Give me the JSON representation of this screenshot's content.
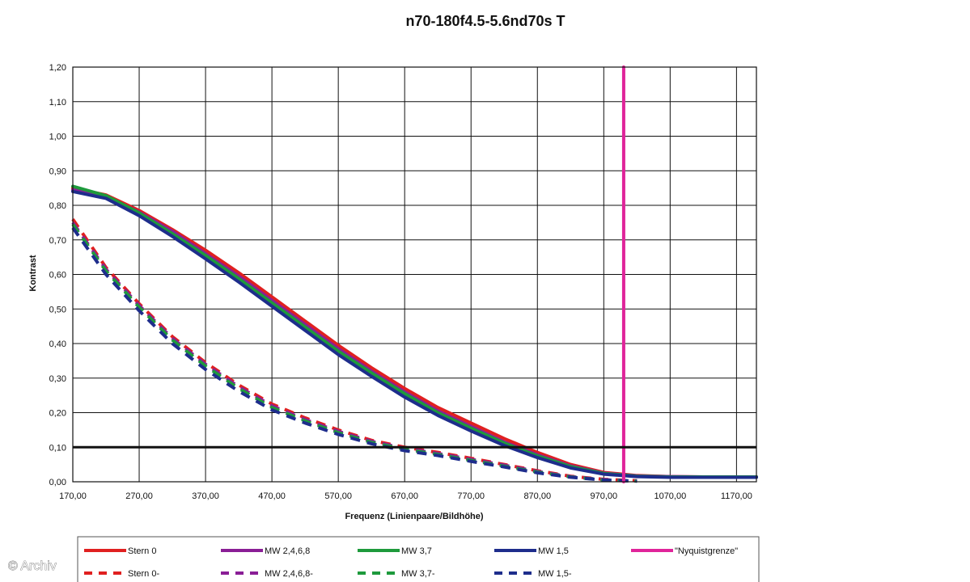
{
  "chart_data": {
    "type": "line",
    "title": "n70-180f4.5-5.6nd70s T",
    "xlabel": "Frequenz (Linienpaare/Bildhöhe)",
    "ylabel": "Kontrast",
    "xlim": [
      170,
      1200
    ],
    "ylim": [
      0,
      1.2
    ],
    "x_ticks": [
      "170,00",
      "270,00",
      "370,00",
      "470,00",
      "570,00",
      "670,00",
      "770,00",
      "870,00",
      "970,00",
      "1070,00",
      "1170,00"
    ],
    "y_ticks": [
      "0,00",
      "0,10",
      "0,20",
      "0,30",
      "0,40",
      "0,50",
      "0,60",
      "0,70",
      "0,80",
      "0,90",
      "1,00",
      "1,10",
      "1,20"
    ],
    "grid": true,
    "legend_position": "bottom",
    "series": [
      {
        "name": "Stern 0",
        "color": "#e02020",
        "dash": false,
        "x": [
          170,
          220,
          270,
          320,
          370,
          420,
          470,
          520,
          570,
          620,
          670,
          720,
          770,
          820,
          870,
          920,
          970,
          1020,
          1070,
          1120,
          1170,
          1200
        ],
        "y": [
          0.85,
          0.83,
          0.785,
          0.73,
          0.67,
          0.605,
          0.535,
          0.465,
          0.395,
          0.33,
          0.27,
          0.215,
          0.17,
          0.125,
          0.085,
          0.05,
          0.027,
          0.018,
          0.015,
          0.014,
          0.014,
          0.014
        ]
      },
      {
        "name": "MW 2,4,6,8",
        "color": "#8a1e96",
        "dash": false,
        "x": [
          170,
          220,
          270,
          320,
          370,
          420,
          470,
          520,
          570,
          620,
          670,
          720,
          770,
          820,
          870,
          920,
          970,
          1020,
          1070,
          1120,
          1170,
          1200
        ],
        "y": [
          0.845,
          0.826,
          0.78,
          0.725,
          0.66,
          0.595,
          0.525,
          0.455,
          0.385,
          0.32,
          0.26,
          0.205,
          0.16,
          0.115,
          0.078,
          0.046,
          0.025,
          0.017,
          0.015,
          0.014,
          0.014,
          0.014
        ]
      },
      {
        "name": "MW 3,7",
        "color": "#1e9a3c",
        "dash": false,
        "x": [
          170,
          220,
          270,
          320,
          370,
          420,
          470,
          520,
          570,
          620,
          670,
          720,
          770,
          820,
          870,
          920,
          970,
          1020,
          1070,
          1120,
          1170,
          1200
        ],
        "y": [
          0.855,
          0.828,
          0.778,
          0.718,
          0.655,
          0.588,
          0.518,
          0.448,
          0.378,
          0.315,
          0.255,
          0.2,
          0.155,
          0.112,
          0.075,
          0.044,
          0.024,
          0.016,
          0.014,
          0.014,
          0.014,
          0.014
        ]
      },
      {
        "name": "MW 1,5",
        "color": "#1e2d8c",
        "dash": false,
        "x": [
          170,
          220,
          270,
          320,
          370,
          420,
          470,
          520,
          570,
          620,
          670,
          720,
          770,
          820,
          870,
          920,
          970,
          1020,
          1070,
          1120,
          1170,
          1200
        ],
        "y": [
          0.84,
          0.82,
          0.77,
          0.71,
          0.645,
          0.578,
          0.508,
          0.438,
          0.368,
          0.305,
          0.245,
          0.192,
          0.147,
          0.105,
          0.07,
          0.04,
          0.022,
          0.015,
          0.013,
          0.013,
          0.013,
          0.013
        ]
      },
      {
        "name": "\"Nyquistgrenze\"",
        "color": "#e0249a",
        "dash": false,
        "x": [
          1000,
          1000
        ],
        "y": [
          0,
          1.2
        ]
      },
      {
        "name": "Stern 0-",
        "color": "#e02020",
        "dash": true,
        "x": [
          170,
          220,
          270,
          320,
          370,
          420,
          470,
          520,
          570,
          620,
          670,
          720,
          770,
          820,
          870,
          920,
          970,
          1020
        ],
        "y": [
          0.76,
          0.62,
          0.515,
          0.42,
          0.345,
          0.28,
          0.225,
          0.185,
          0.15,
          0.12,
          0.1,
          0.085,
          0.068,
          0.05,
          0.032,
          0.016,
          0.007,
          0.003
        ]
      },
      {
        "name": "MW 2,4,6,8-",
        "color": "#8a1e96",
        "dash": true,
        "x": [
          170,
          220,
          270,
          320,
          370,
          420,
          470,
          520,
          570,
          620,
          670,
          720,
          770,
          820,
          870,
          920,
          970,
          1020
        ],
        "y": [
          0.75,
          0.615,
          0.51,
          0.415,
          0.34,
          0.275,
          0.22,
          0.18,
          0.146,
          0.117,
          0.097,
          0.082,
          0.065,
          0.048,
          0.03,
          0.015,
          0.006,
          0.002
        ]
      },
      {
        "name": "MW 3,7-",
        "color": "#1e9a3c",
        "dash": true,
        "x": [
          170,
          220,
          270,
          320,
          370,
          420,
          470,
          520,
          570,
          620,
          670,
          720,
          770,
          820,
          870,
          920,
          970,
          1020
        ],
        "y": [
          0.745,
          0.61,
          0.505,
          0.41,
          0.335,
          0.27,
          0.215,
          0.176,
          0.142,
          0.114,
          0.094,
          0.079,
          0.062,
          0.045,
          0.028,
          0.014,
          0.005,
          0.002
        ]
      },
      {
        "name": "MW 1,5-",
        "color": "#1e2d8c",
        "dash": true,
        "x": [
          170,
          220,
          270,
          320,
          370,
          420,
          470,
          520,
          570,
          620,
          670,
          720,
          770,
          820,
          870,
          920,
          970,
          1020
        ],
        "y": [
          0.735,
          0.6,
          0.495,
          0.4,
          0.325,
          0.262,
          0.208,
          0.17,
          0.137,
          0.11,
          0.09,
          0.076,
          0.059,
          0.043,
          0.026,
          0.013,
          0.005,
          0.002
        ]
      }
    ],
    "reference_line": {
      "y": 0.1,
      "color": "#111111"
    }
  },
  "credit": "© Archiv"
}
